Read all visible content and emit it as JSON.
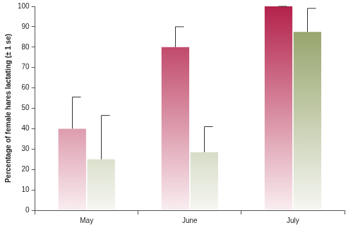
{
  "chart_data": {
    "type": "bar",
    "y_label": "Percentage of female hares lactating (± 1 se)",
    "categories": [
      "May",
      "June",
      "July"
    ],
    "series": [
      {
        "color": "#b3224a",
        "values": [
          40,
          80,
          100
        ],
        "errors": [
          15.5,
          10,
          0
        ]
      },
      {
        "color": "#8a9a5b",
        "values": [
          25,
          28.5,
          87.5
        ],
        "errors": [
          21.5,
          12.5,
          11.5
        ]
      }
    ],
    "ylim": [
      0,
      100
    ],
    "yticks": [
      0,
      10,
      20,
      30,
      40,
      50,
      60,
      70,
      80,
      90,
      100
    ],
    "grid": false
  }
}
